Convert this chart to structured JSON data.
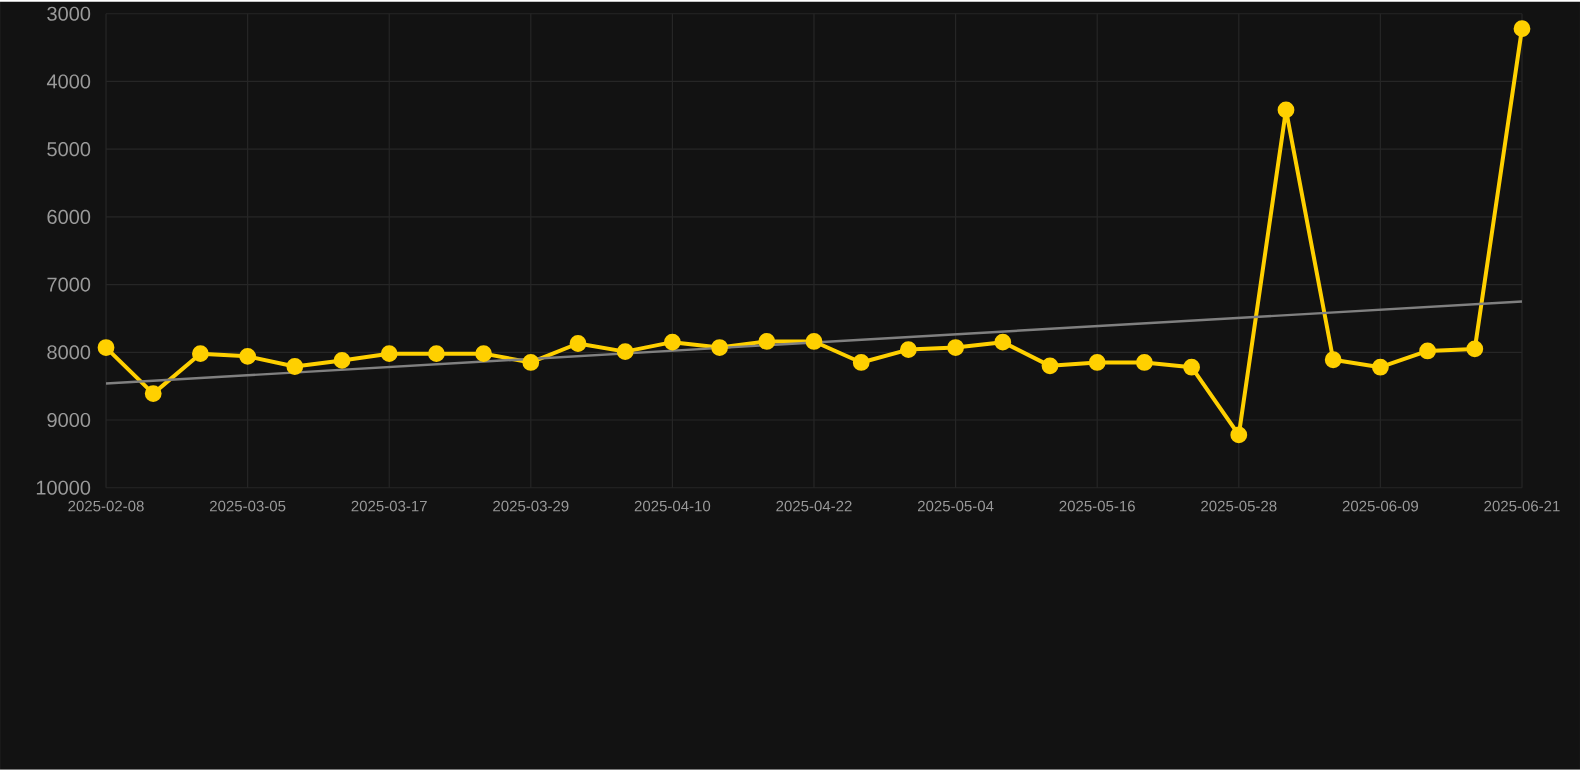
{
  "chart_data": {
    "type": "line",
    "categories": [
      "2025-02-08",
      null,
      null,
      "2025-03-05",
      null,
      null,
      "2025-03-17",
      null,
      null,
      "2025-03-29",
      null,
      null,
      "2025-04-10",
      null,
      null,
      "2025-04-22",
      null,
      null,
      "2025-05-04",
      null,
      null,
      "2025-05-16",
      null,
      null,
      "2025-05-28",
      null,
      null,
      "2025-06-09",
      null,
      null,
      "2025-06-21"
    ],
    "series": [
      {
        "color": "#ffd000",
        "marker": "circle",
        "line_style": "solid",
        "values": [
          7930,
          8610,
          8020,
          8060,
          8210,
          8120,
          8020,
          8020,
          8020,
          8150,
          7870,
          7990,
          7850,
          7930,
          7840,
          7840,
          8150,
          7960,
          7930,
          7850,
          8200,
          8150,
          8150,
          8220,
          9220,
          4420,
          8110,
          8220,
          7980,
          7950,
          3220
        ]
      },
      {
        "type": "line",
        "color": "#808080",
        "marker": "none",
        "line_style": "solid",
        "values": [
          8460,
          null,
          null,
          null,
          null,
          null,
          null,
          null,
          null,
          null,
          null,
          null,
          null,
          null,
          null,
          null,
          null,
          null,
          null,
          null,
          null,
          null,
          null,
          null,
          null,
          null,
          null,
          null,
          null,
          null,
          7250
        ]
      }
    ],
    "ylim": [
      10000,
      3000
    ],
    "yticks": [
      3000,
      4000,
      5000,
      6000,
      7000,
      8000,
      9000,
      10000
    ],
    "grid": true
  }
}
